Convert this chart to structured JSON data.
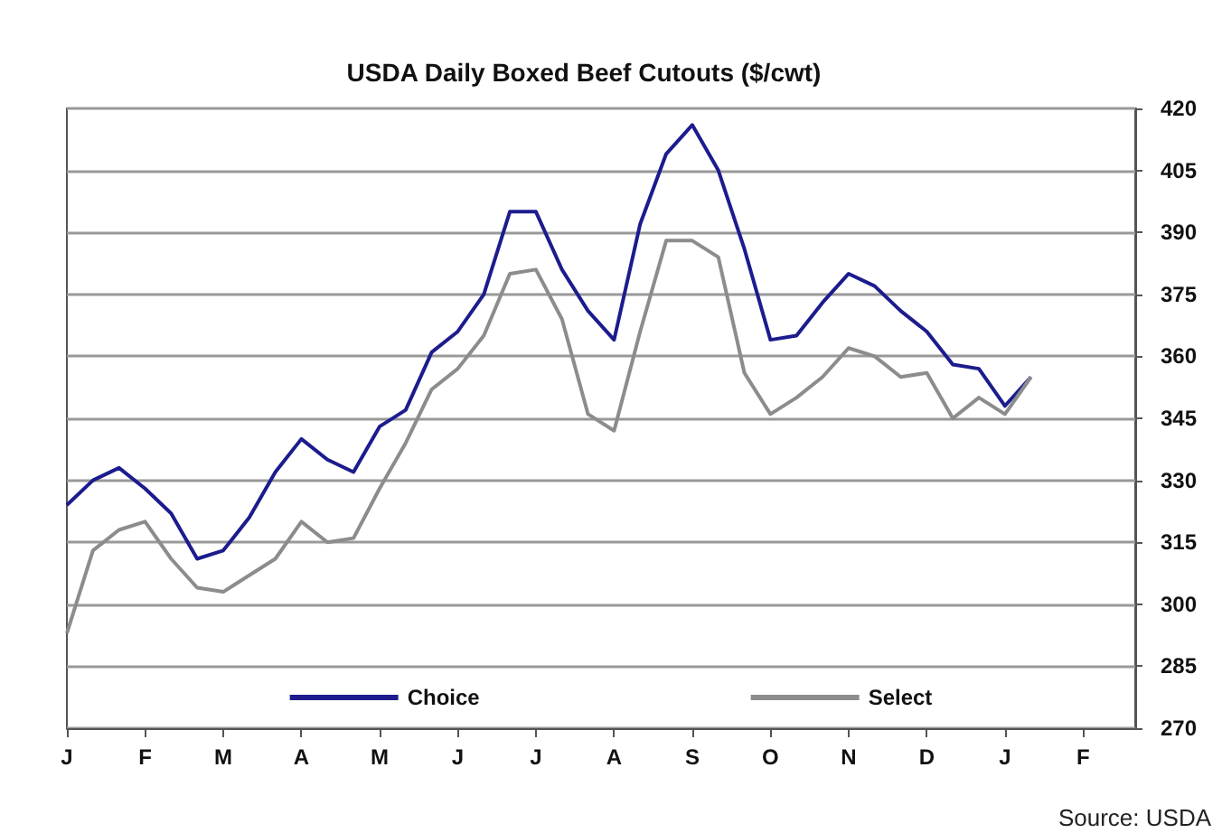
{
  "chart_data": {
    "type": "line",
    "title": "USDA Daily Boxed Beef Cutouts ($/cwt)",
    "annotations": [
      "Source: USDA"
    ],
    "categories": [
      "J",
      null,
      null,
      "F",
      null,
      null,
      "M",
      null,
      null,
      "A",
      null,
      null,
      "M",
      null,
      null,
      "J",
      null,
      null,
      "J",
      null,
      null,
      "A",
      null,
      null,
      "S",
      null,
      null,
      "O",
      null,
      null,
      "N",
      null,
      null,
      "D",
      null,
      null,
      "J",
      null,
      null,
      "F",
      null,
      null
    ],
    "ylim": [
      270,
      420
    ],
    "yticks": [
      270,
      285,
      300,
      315,
      330,
      345,
      360,
      375,
      390,
      405,
      420
    ],
    "grid": "y",
    "legend": "bottom",
    "marker": "none",
    "line_style": "solid",
    "series": [
      {
        "name": "Choice",
        "color": "#1c1c8e",
        "values": [
          324,
          330,
          333,
          328,
          322,
          311,
          313,
          321,
          332,
          340,
          335,
          332,
          343,
          347,
          361,
          366,
          375,
          395,
          395,
          381,
          371,
          364,
          392,
          409,
          416,
          405,
          386,
          364,
          365,
          373,
          380,
          377,
          371,
          366,
          358,
          357,
          348,
          355,
          null,
          null,
          null,
          null
        ]
      },
      {
        "name": "Select",
        "color": "#8c8c8c",
        "values": [
          293,
          313,
          318,
          320,
          311,
          304,
          303,
          307,
          311,
          320,
          315,
          316,
          328,
          339,
          352,
          357,
          365,
          380,
          381,
          369,
          346,
          342,
          366,
          388,
          388,
          384,
          356,
          346,
          350,
          355,
          362,
          360,
          355,
          356,
          345,
          350,
          346,
          355,
          null,
          null,
          null,
          null
        ]
      }
    ]
  }
}
